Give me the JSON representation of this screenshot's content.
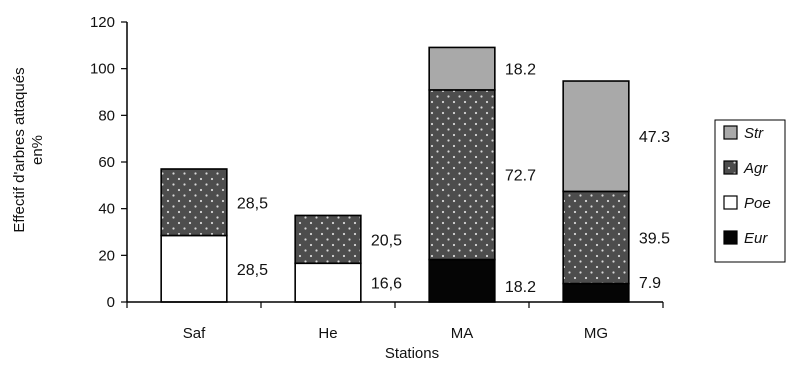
{
  "colors": {
    "Str": "#a9a9a9",
    "Agr": "#4d4d4d",
    "Poe": "#ffffff",
    "Eur": "#050505",
    "axis": "#000000"
  },
  "chart_data": {
    "type": "bar",
    "stacked": true,
    "categories": [
      "Saf",
      "He",
      "MA",
      "MG"
    ],
    "series": [
      {
        "name": "Eur",
        "values": [
          0,
          0,
          18.2,
          7.9
        ],
        "labels": [
          "",
          "",
          "18.2",
          "7.9"
        ]
      },
      {
        "name": "Poe",
        "values": [
          28.5,
          16.6,
          0,
          0
        ],
        "labels": [
          "28,5",
          "16,6",
          "",
          ""
        ]
      },
      {
        "name": "Agr",
        "values": [
          28.5,
          20.5,
          72.7,
          39.5
        ],
        "labels": [
          "28,5",
          "20,5",
          "72.7",
          "39.5"
        ]
      },
      {
        "name": "Str",
        "values": [
          0,
          0,
          18.2,
          47.3
        ],
        "labels": [
          "",
          "",
          "18.2",
          "47.3"
        ]
      }
    ],
    "legend_order": [
      "Str",
      "Agr",
      "Poe",
      "Eur"
    ],
    "legend_position": "right",
    "title": "",
    "xlabel": "Stations",
    "ylabel_line1": "Effectif d'arbres attaqués",
    "ylabel_line2": "en%",
    "ylim": [
      0,
      120
    ],
    "yticks": [
      0,
      20,
      40,
      60,
      80,
      100,
      120
    ],
    "grid": false
  }
}
